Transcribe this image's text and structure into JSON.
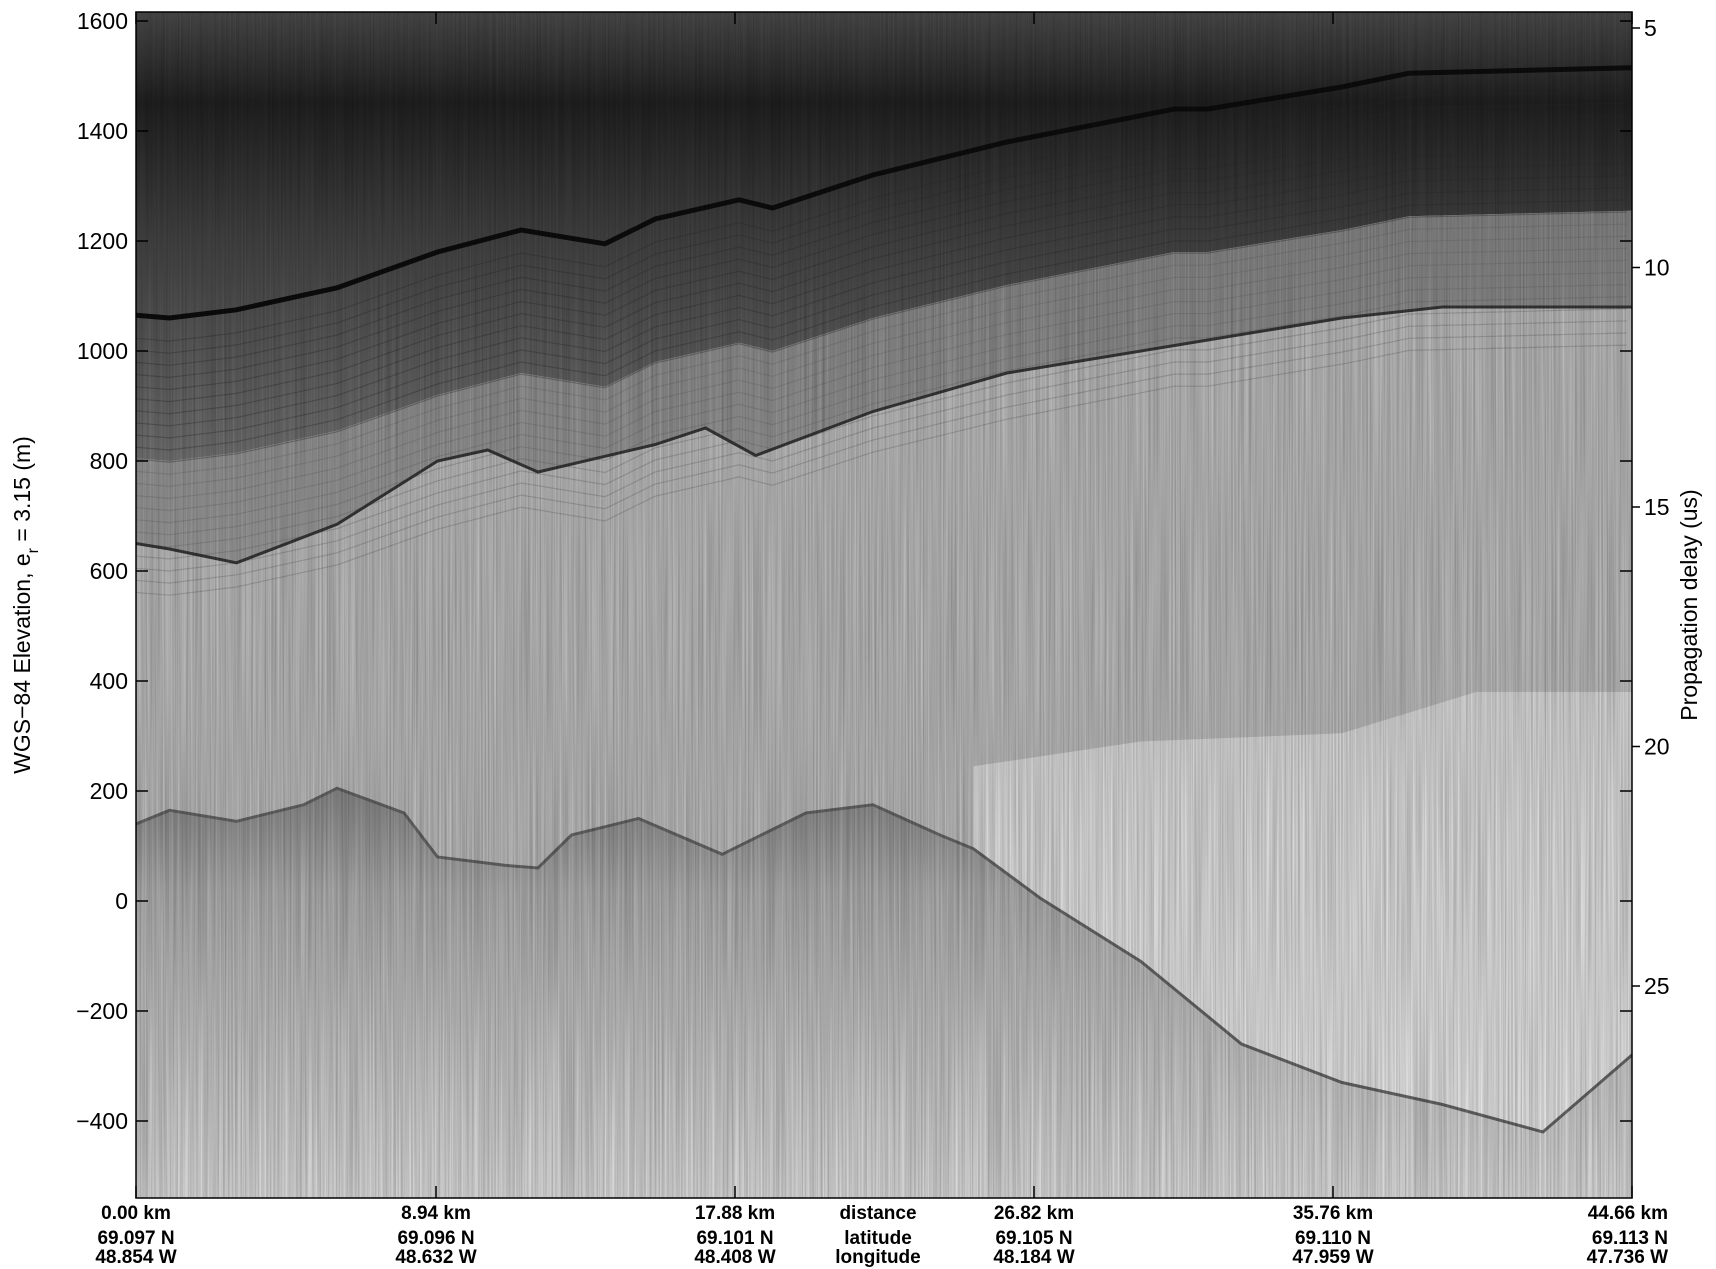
{
  "chart_data": {
    "type": "heatmap",
    "description_type": "radar echogram (grayscale)",
    "colormap": "gray (dark = strong return)",
    "ylabel_left": "WGS−84 Elevation, e",
    "ylabel_left_sub": "r",
    "ylabel_left_tail": " = 3.15 (m)",
    "ylabel_right": "Propagation delay (us)",
    "ylim_left": [
      -540,
      1615
    ],
    "yticks_left": [
      1600,
      1400,
      1200,
      1000,
      800,
      600,
      400,
      200,
      0,
      -200,
      -400
    ],
    "ytick_labels_left": [
      "1600",
      "1400",
      "1200",
      "1000",
      "800",
      "600",
      "400",
      "200",
      "0",
      "−200",
      "−400"
    ],
    "yticks_right": [
      5,
      10,
      15,
      20,
      25
    ],
    "ytick_labels_right": [
      "5",
      "10",
      "15",
      "20",
      "25"
    ],
    "x_columns": [
      {
        "distance": "0.00 km",
        "latitude": "69.097 N",
        "longitude": "48.854 W"
      },
      {
        "distance": "8.94 km",
        "latitude": "69.096 N",
        "longitude": "48.632 W"
      },
      {
        "distance": "17.88 km",
        "latitude": "69.101 N",
        "longitude": "48.408 W"
      },
      {
        "distance": "26.82 km",
        "latitude": "69.105 N",
        "longitude": "48.184 W"
      },
      {
        "distance": "35.76 km",
        "latitude": "69.110 N",
        "longitude": "47.959 W"
      },
      {
        "distance": "44.66 km",
        "latitude": "69.113 N",
        "longitude": "47.736 W"
      }
    ],
    "x_center_labels": [
      "distance",
      "latitude",
      "longitude"
    ],
    "x_range_km": [
      0,
      44.66
    ],
    "layers": {
      "surface": {
        "x_km": [
          0,
          1,
          3,
          6,
          9,
          11.5,
          14,
          15.5,
          18,
          19,
          22,
          26,
          31,
          32,
          36,
          38,
          44.66
        ],
        "elev_m": [
          1065,
          1060,
          1075,
          1115,
          1180,
          1220,
          1195,
          1240,
          1275,
          1260,
          1320,
          1380,
          1440,
          1440,
          1480,
          1505,
          1515
        ]
      },
      "layer_deep": {
        "x_km": [
          0,
          1,
          3,
          6,
          9,
          10.5,
          12,
          15.5,
          17,
          18.5,
          22,
          26,
          30,
          31,
          36,
          39,
          44.66
        ],
        "elev_m": [
          650,
          640,
          615,
          685,
          800,
          820,
          780,
          830,
          860,
          810,
          890,
          960,
          1000,
          1010,
          1060,
          1080,
          1080
        ]
      },
      "bed": {
        "x_km": [
          0,
          1,
          3,
          5,
          6,
          8,
          9,
          11,
          12,
          13,
          15,
          17.5,
          20,
          22,
          24,
          25,
          27,
          30,
          33,
          36,
          39,
          42,
          44.66
        ],
        "elev_m": [
          140,
          165,
          145,
          175,
          205,
          160,
          80,
          65,
          60,
          120,
          150,
          85,
          160,
          175,
          120,
          95,
          5,
          -110,
          -260,
          -330,
          -370,
          -420,
          -280
        ]
      },
      "floating_ice_top": {
        "x_km": [
          25,
          30,
          36,
          40,
          44.66
        ],
        "elev_m": [
          245,
          290,
          305,
          380,
          380
        ]
      }
    }
  }
}
